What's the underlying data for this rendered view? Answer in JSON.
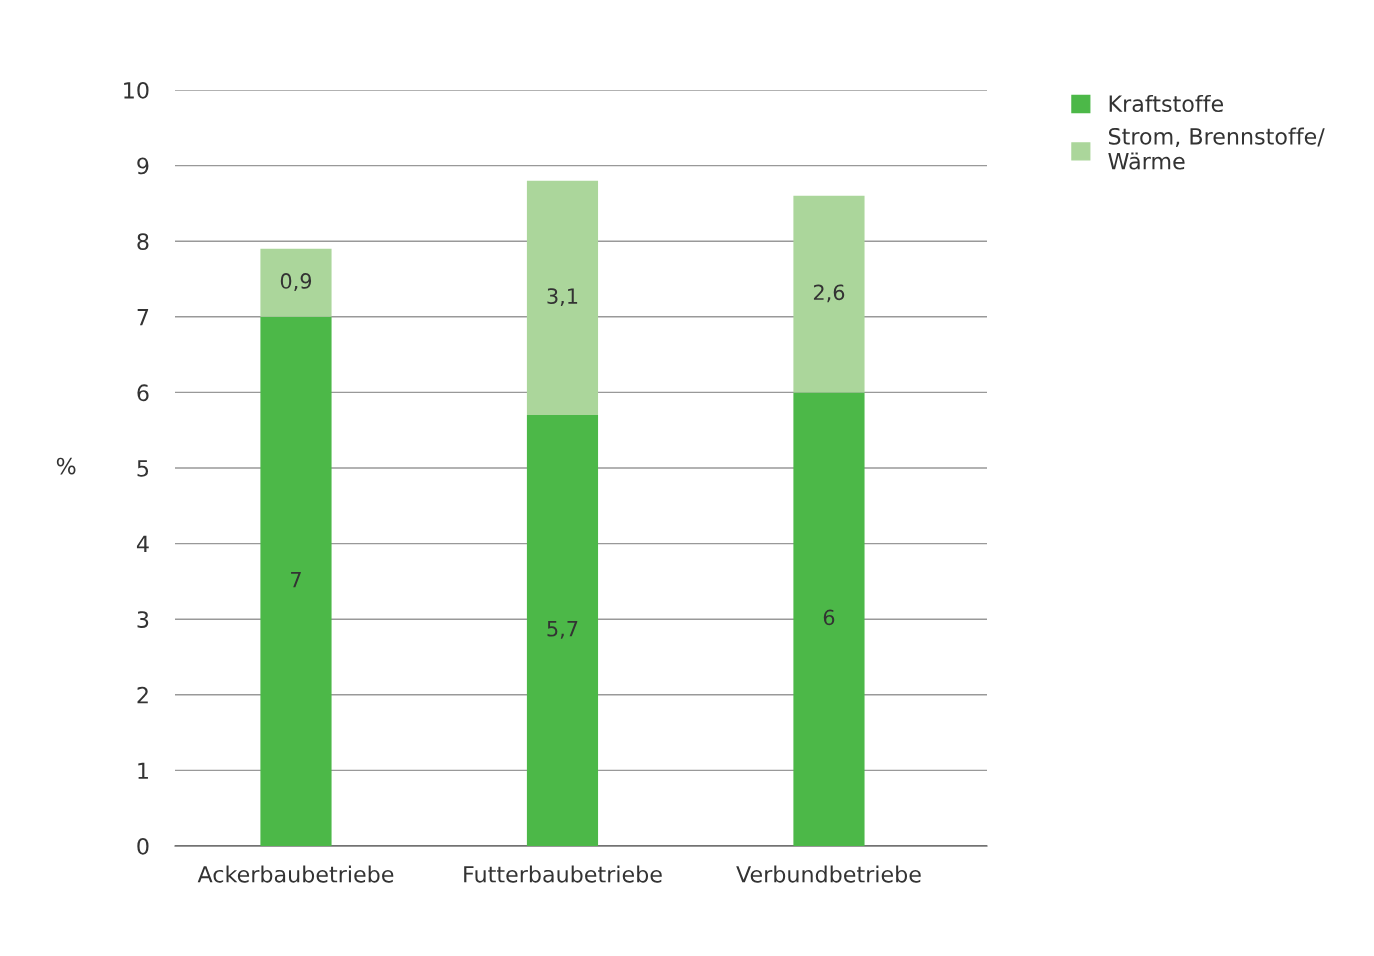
{
  "chart_data": {
    "type": "bar",
    "stacked": true,
    "ylabel": "%",
    "categories": [
      "Ackerbaubetriebe",
      "Futterbaubetriebe",
      "Verbundbetriebe"
    ],
    "series": [
      {
        "name": "Kraftstoffe",
        "color": "#4cb848",
        "values": [
          7,
          5.7,
          6
        ],
        "value_labels": [
          "7",
          "5,7",
          "6"
        ]
      },
      {
        "name": "Strom, Brennstoffe/\nWärme",
        "color": "#abd69b",
        "values": [
          0.9,
          3.1,
          2.6
        ],
        "value_labels": [
          "0,9",
          "3,1",
          "2,6"
        ]
      }
    ],
    "ylim": [
      0,
      10
    ],
    "yticks": [
      0,
      1,
      2,
      3,
      4,
      5,
      6,
      7,
      8,
      9,
      10
    ],
    "grid": "y",
    "legend": "top right"
  }
}
